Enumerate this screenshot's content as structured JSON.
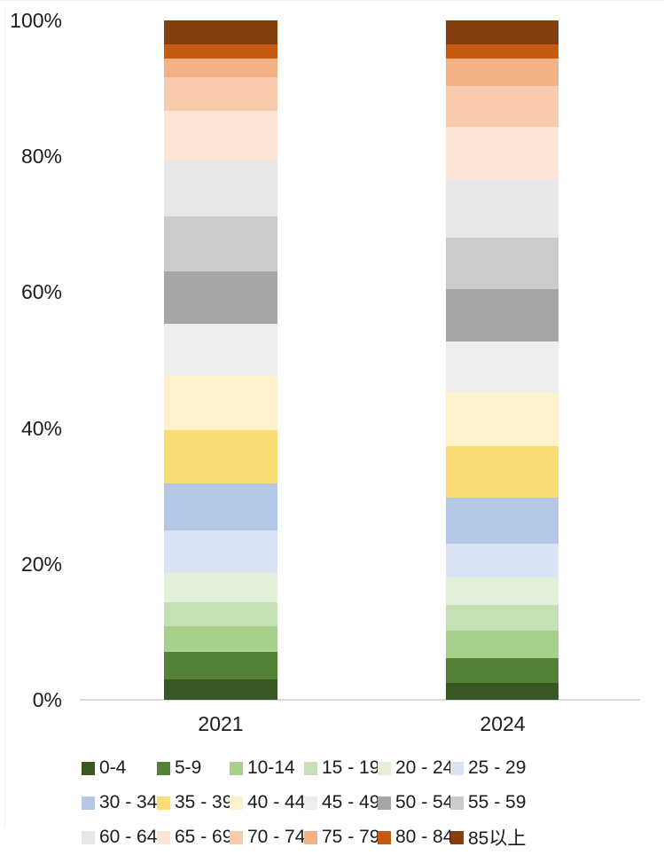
{
  "chart_data": {
    "type": "bar",
    "subtype": "stacked-100-percent",
    "title": "",
    "xlabel": "",
    "ylabel": "",
    "ylim": [
      0,
      100
    ],
    "grid": false,
    "legend_position": "bottom",
    "y_tick_labels": [
      "0%",
      "20%",
      "40%",
      "60%",
      "80%",
      "100%"
    ],
    "y_tick_values": [
      0,
      20,
      40,
      60,
      80,
      100
    ],
    "categories": [
      "2021",
      "2024"
    ],
    "series": [
      {
        "name": "0-4",
        "color": "#385723",
        "values": [
          3.0,
          2.5
        ]
      },
      {
        "name": "5-9",
        "color": "#538135",
        "values": [
          4.0,
          3.6
        ]
      },
      {
        "name": "10-14",
        "color": "#a6d08b",
        "values": [
          3.8,
          4.1
        ]
      },
      {
        "name": "15 - 19",
        "color": "#c5e0b4",
        "values": [
          3.6,
          3.8
        ]
      },
      {
        "name": "20 - 24",
        "color": "#e2efd9",
        "values": [
          4.3,
          4.0
        ]
      },
      {
        "name": "25 - 29",
        "color": "#dae3f3",
        "values": [
          6.3,
          5.0
        ]
      },
      {
        "name": "30 - 34",
        "color": "#b4c7e7",
        "values": [
          6.9,
          6.8
        ]
      },
      {
        "name": "35 - 39",
        "color": "#fcdd75",
        "values": [
          7.8,
          7.5
        ]
      },
      {
        "name": "40 - 44",
        "color": "#fdf2cc",
        "values": [
          7.9,
          8.0
        ]
      },
      {
        "name": "45 - 49",
        "color": "#ededed",
        "values": [
          7.8,
          7.5
        ]
      },
      {
        "name": "50 - 54",
        "color": "#a6a6a6",
        "values": [
          7.7,
          7.7
        ]
      },
      {
        "name": "55 - 59",
        "color": "#cbcbcb",
        "values": [
          8.1,
          7.6
        ]
      },
      {
        "name": "60 - 64",
        "color": "#e8e7e7",
        "values": [
          8.2,
          8.5
        ]
      },
      {
        "name": "65 - 69",
        "color": "#fbe5d6",
        "values": [
          7.3,
          7.8
        ]
      },
      {
        "name": "70 - 74",
        "color": "#f8cbad",
        "values": [
          5.0,
          6.0
        ]
      },
      {
        "name": "75 - 79",
        "color": "#f4b183",
        "values": [
          2.7,
          4.0
        ]
      },
      {
        "name": "80 - 84",
        "color": "#c55a11",
        "values": [
          2.1,
          2.1
        ]
      },
      {
        "name": "85以上",
        "color": "#853e0d",
        "values": [
          3.5,
          3.5
        ]
      }
    ]
  }
}
